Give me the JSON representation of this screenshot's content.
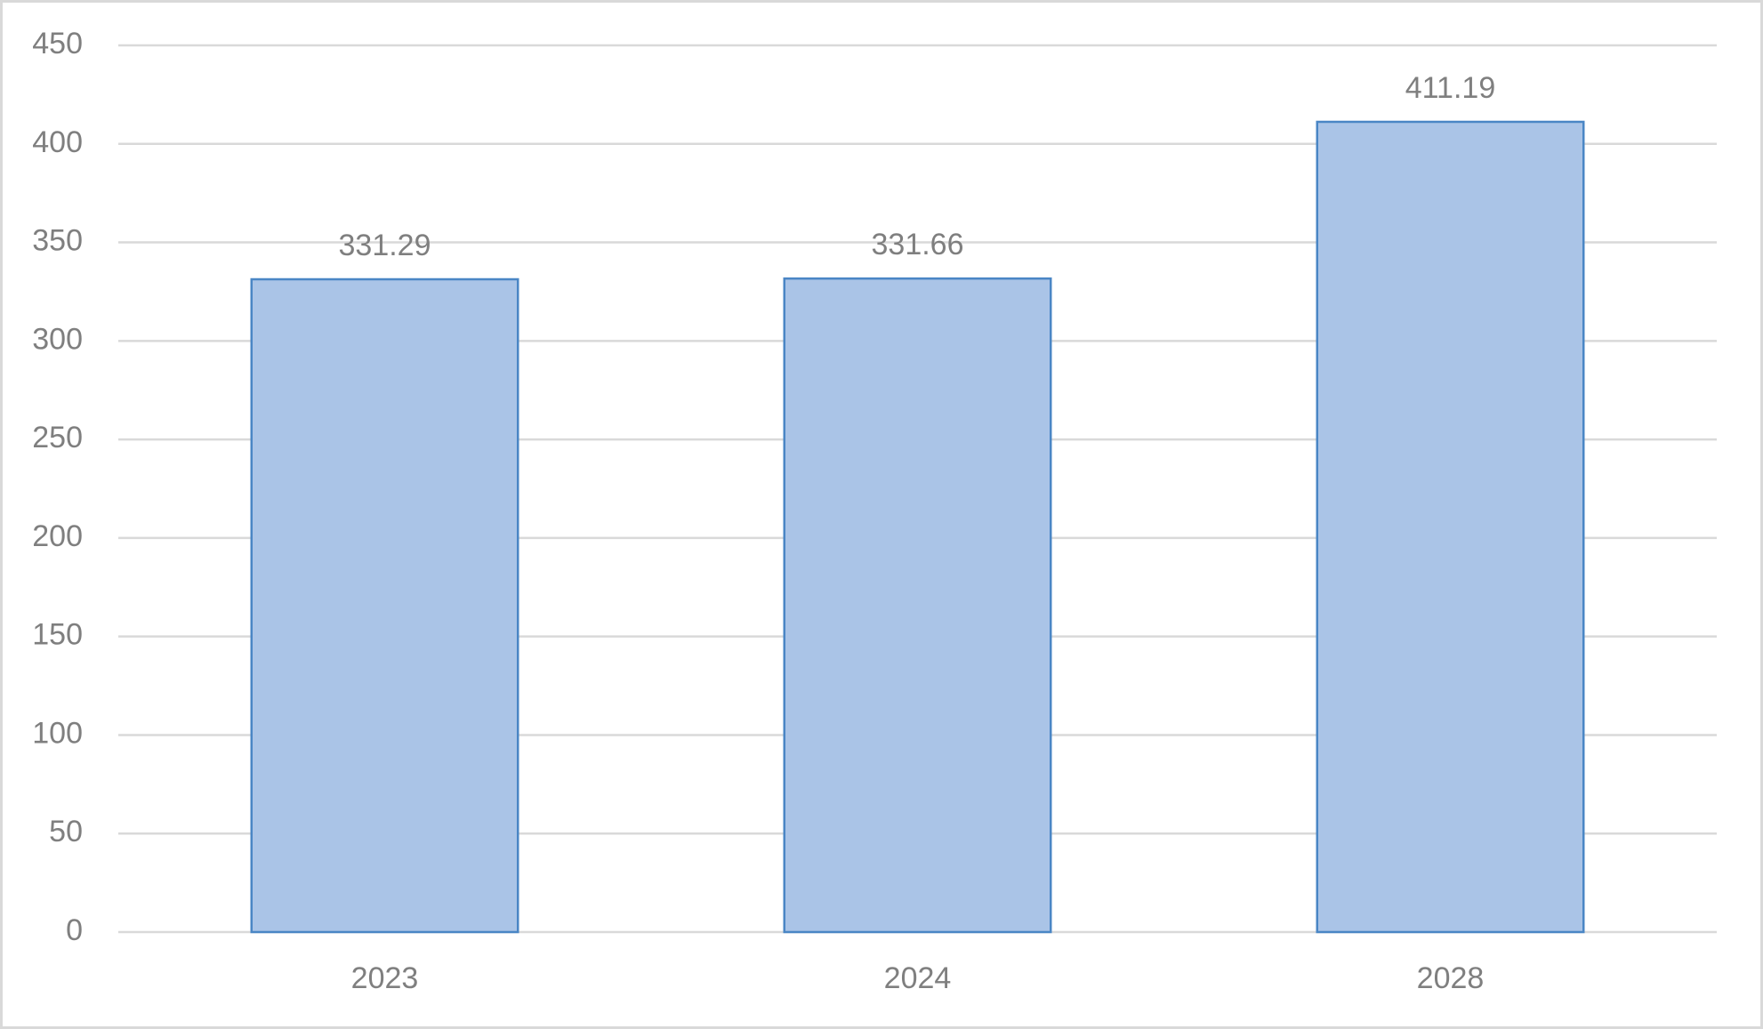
{
  "chart_data": {
    "type": "bar",
    "categories": [
      "2023",
      "2024",
      "2028"
    ],
    "values": [
      331.29,
      331.66,
      411.19
    ],
    "color": "#aac4e7",
    "ylim": [
      0,
      450
    ],
    "yticks": [
      0,
      50,
      100,
      150,
      200,
      250,
      300,
      350,
      400,
      450
    ],
    "grid": true,
    "data_labels": true
  }
}
